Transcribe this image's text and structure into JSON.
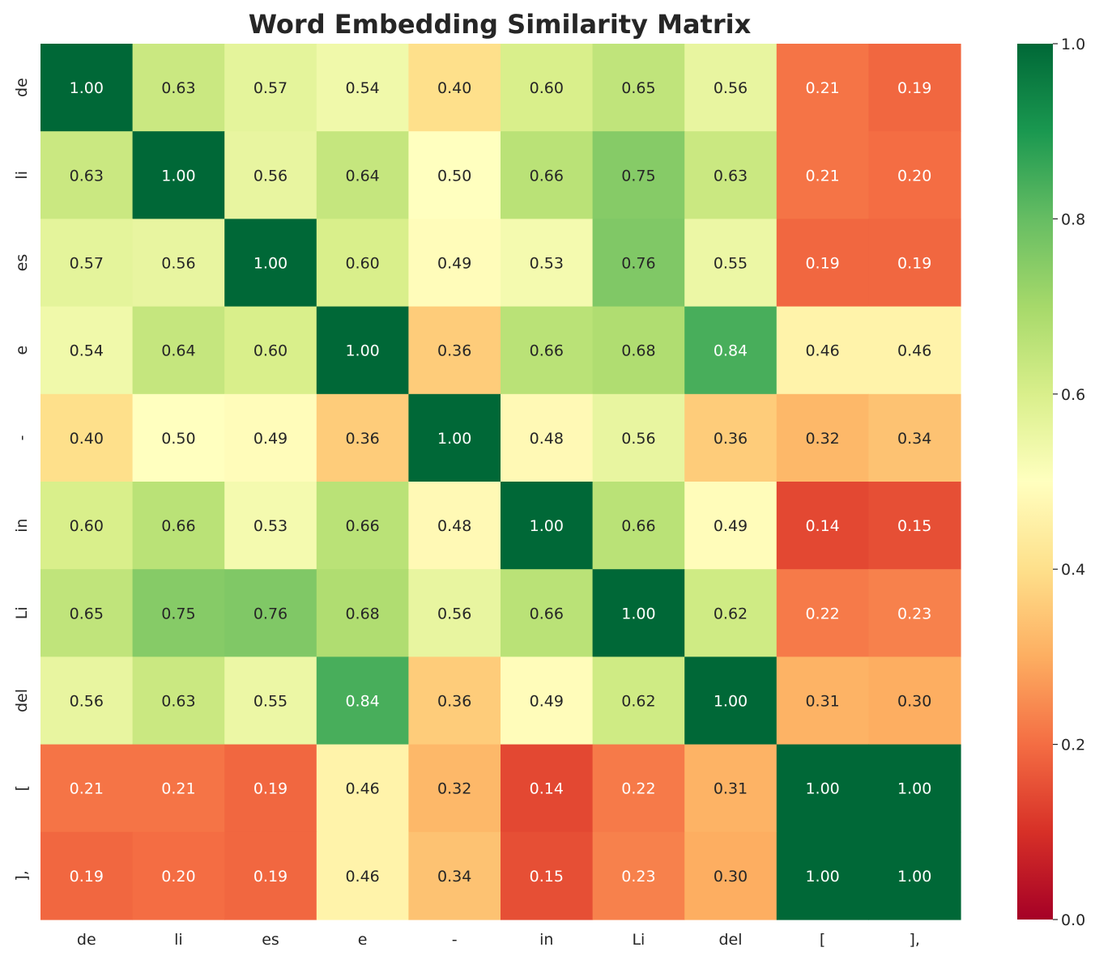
{
  "chart_data": {
    "type": "heatmap",
    "title": "Word Embedding Similarity Matrix",
    "x_labels": [
      "de",
      "li",
      "es",
      "e",
      "-",
      "in",
      "Li",
      "del",
      "[",
      "],"
    ],
    "y_labels": [
      "de",
      "li",
      "es",
      "e",
      "-",
      "in",
      "Li",
      "del",
      "[",
      "],"
    ],
    "values": [
      [
        1.0,
        0.63,
        0.57,
        0.54,
        0.4,
        0.6,
        0.65,
        0.56,
        0.21,
        0.19
      ],
      [
        0.63,
        1.0,
        0.56,
        0.64,
        0.5,
        0.66,
        0.75,
        0.63,
        0.21,
        0.2
      ],
      [
        0.57,
        0.56,
        1.0,
        0.6,
        0.49,
        0.53,
        0.76,
        0.55,
        0.19,
        0.19
      ],
      [
        0.54,
        0.64,
        0.6,
        1.0,
        0.36,
        0.66,
        0.68,
        0.84,
        0.46,
        0.46
      ],
      [
        0.4,
        0.5,
        0.49,
        0.36,
        1.0,
        0.48,
        0.56,
        0.36,
        0.32,
        0.34
      ],
      [
        0.6,
        0.66,
        0.53,
        0.66,
        0.48,
        1.0,
        0.66,
        0.49,
        0.14,
        0.15
      ],
      [
        0.65,
        0.75,
        0.76,
        0.68,
        0.56,
        0.66,
        1.0,
        0.62,
        0.22,
        0.23
      ],
      [
        0.56,
        0.63,
        0.55,
        0.84,
        0.36,
        0.49,
        0.62,
        1.0,
        0.31,
        0.3
      ],
      [
        0.21,
        0.21,
        0.19,
        0.46,
        0.32,
        0.14,
        0.22,
        0.31,
        1.0,
        1.0
      ],
      [
        0.19,
        0.2,
        0.19,
        0.46,
        0.34,
        0.15,
        0.23,
        0.3,
        1.0,
        1.0
      ]
    ],
    "value_format": "2 decimals",
    "colormap": "RdYlGn",
    "colormap_stops": [
      "#a50026",
      "#d73027",
      "#f46d43",
      "#fdae61",
      "#fee08b",
      "#ffffbf",
      "#d9ef8b",
      "#a6d96a",
      "#66bd63",
      "#1a9850",
      "#006837"
    ],
    "vmin": 0.0,
    "vmax": 1.0,
    "colorbar_ticks": [
      "0.0",
      "0.2",
      "0.4",
      "0.6",
      "0.8",
      "1.0"
    ],
    "colorbar_position": "right",
    "grid": false
  }
}
